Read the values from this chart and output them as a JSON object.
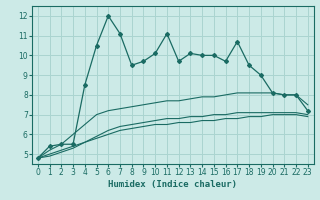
{
  "xlabel": "Humidex (Indice chaleur)",
  "bg_color": "#cceae7",
  "grid_color": "#aad4d0",
  "line_color": "#1a6b63",
  "x_data": [
    0,
    1,
    2,
    3,
    4,
    5,
    6,
    7,
    8,
    9,
    10,
    11,
    12,
    13,
    14,
    15,
    16,
    17,
    18,
    19,
    20,
    21,
    22,
    23
  ],
  "series1": [
    4.8,
    5.4,
    5.5,
    5.5,
    8.5,
    10.5,
    12.0,
    11.1,
    9.5,
    9.7,
    10.1,
    11.1,
    9.7,
    10.1,
    10.0,
    10.0,
    9.7,
    10.7,
    9.5,
    9.0,
    8.1,
    8.0,
    8.0,
    7.2
  ],
  "series2": [
    4.8,
    5.2,
    5.5,
    6.0,
    6.5,
    7.0,
    7.2,
    7.3,
    7.4,
    7.5,
    7.6,
    7.7,
    7.7,
    7.8,
    7.9,
    7.9,
    8.0,
    8.1,
    8.1,
    8.1,
    8.1,
    8.0,
    8.0,
    7.5
  ],
  "series3": [
    4.8,
    5.0,
    5.2,
    5.4,
    5.6,
    5.9,
    6.2,
    6.4,
    6.5,
    6.6,
    6.7,
    6.8,
    6.8,
    6.9,
    6.9,
    7.0,
    7.0,
    7.1,
    7.1,
    7.1,
    7.1,
    7.1,
    7.1,
    7.0
  ],
  "series4": [
    4.8,
    4.9,
    5.1,
    5.3,
    5.6,
    5.8,
    6.0,
    6.2,
    6.3,
    6.4,
    6.5,
    6.5,
    6.6,
    6.6,
    6.7,
    6.7,
    6.8,
    6.8,
    6.9,
    6.9,
    7.0,
    7.0,
    7.0,
    6.9
  ],
  "ylim": [
    4.5,
    12.5
  ],
  "xlim": [
    -0.5,
    23.5
  ],
  "yticks": [
    5,
    6,
    7,
    8,
    9,
    10,
    11,
    12
  ],
  "xticks": [
    0,
    1,
    2,
    3,
    4,
    5,
    6,
    7,
    8,
    9,
    10,
    11,
    12,
    13,
    14,
    15,
    16,
    17,
    18,
    19,
    20,
    21,
    22,
    23
  ]
}
